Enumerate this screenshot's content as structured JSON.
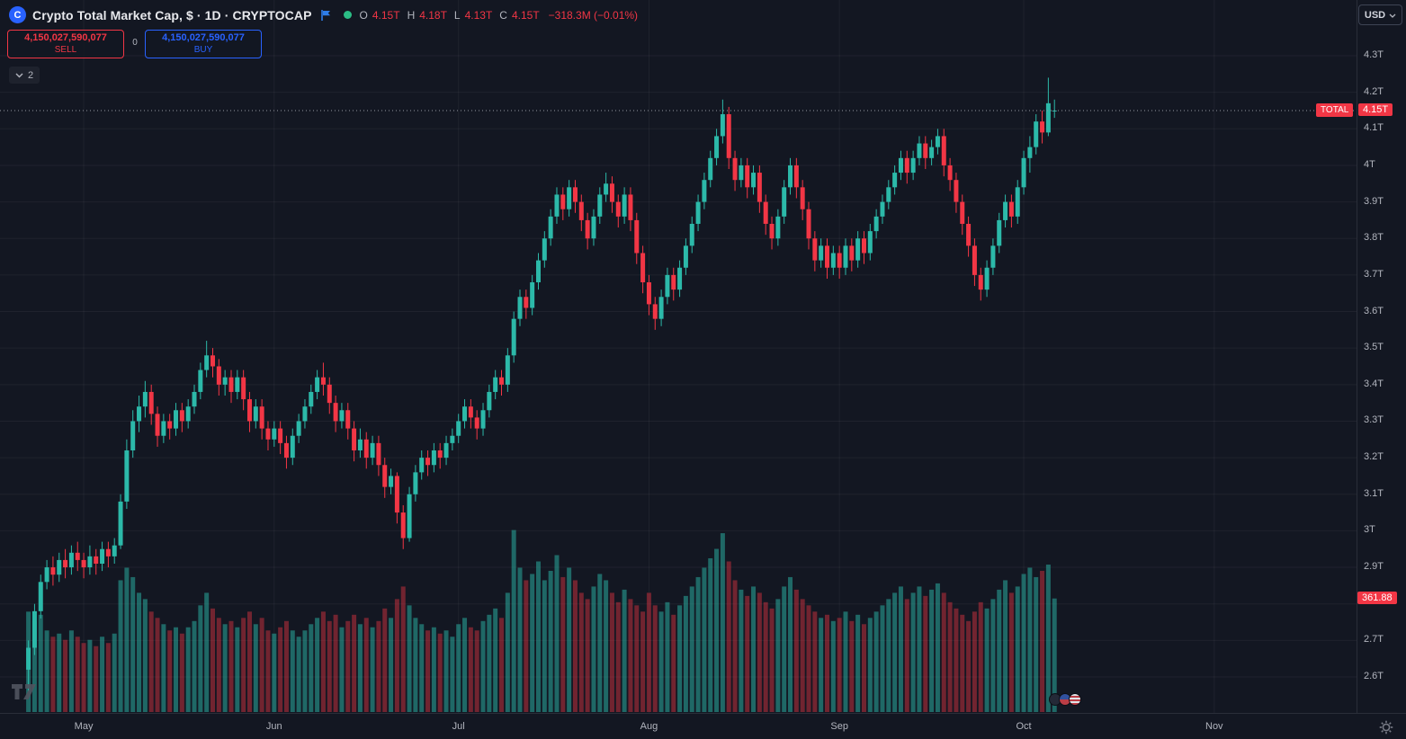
{
  "header": {
    "logo_letter": "C",
    "symbol_title": "Crypto Total Market Cap, $ · 1D · CRYPTOCAP",
    "ohlc": {
      "open_label": "O",
      "open": "4.15T",
      "high_label": "H",
      "high": "4.18T",
      "low_label": "L",
      "low": "4.13T",
      "close_label": "C",
      "close": "4.15T",
      "change": "−318.3M (−0.01%)"
    }
  },
  "trade_panel": {
    "sell_value": "4,150,027,590,077",
    "sell_label": "SELL",
    "spread": "0",
    "buy_value": "4,150,027,590,077",
    "buy_label": "BUY"
  },
  "indicators_chip": {
    "count": "2"
  },
  "currency_dropdown": {
    "value": "USD"
  },
  "price_axis": {
    "tick_labels": [
      "4.3T",
      "4.2T",
      "4.1T",
      "4T",
      "3.9T",
      "3.8T",
      "3.7T",
      "3.6T",
      "3.5T",
      "3.4T",
      "3.3T",
      "3.2T",
      "3.1T",
      "3T",
      "2.9T",
      "2.7T",
      "2.6T"
    ],
    "series_label_badge": "TOTAL",
    "last_price_badge": "4.15T",
    "volume_badge": "361.88"
  },
  "time_axis": {
    "tick_labels": [
      "May",
      "Jun",
      "Jul",
      "Aug",
      "Sep",
      "Oct",
      "Nov"
    ]
  },
  "colors": {
    "background": "#131722",
    "grid": "rgba(255,255,255,0.05)",
    "up": "#2cb9a9",
    "down": "#f23645",
    "volume_up": "rgba(44,185,169,0.50)",
    "volume_down": "rgba(242,54,69,0.42)",
    "price_line": "#9598a1",
    "badge_red": "#f23645",
    "buy_blue": "#2962ff",
    "axis_text": "#b2b5be"
  },
  "chart_data": {
    "type": "candlestick",
    "title": "Crypto Total Market Cap (CRYPTOCAP:TOTAL), 1D, USD",
    "overlay_series": "volume",
    "x_axis": {
      "tick_labels": [
        "May",
        "Jun",
        "Jul",
        "Aug",
        "Sep",
        "Oct",
        "Nov"
      ]
    },
    "y_axis": {
      "unit": "trillion USD",
      "range_T": [
        2.55,
        4.35
      ],
      "visible_ticks_T": [
        4.3,
        4.2,
        4.1,
        4.0,
        3.9,
        3.8,
        3.7,
        3.6,
        3.5,
        3.4,
        3.3,
        3.2,
        3.1,
        3.0,
        2.9,
        2.7,
        2.6
      ]
    },
    "last_price_T": 4.15,
    "last_ohlc": {
      "open": "4.15T",
      "high": "4.18T",
      "low": "4.13T",
      "close": "4.15T",
      "change": "−318.3M",
      "change_pct": "−0.01%"
    },
    "volume_last_B": 361.88,
    "candles_per_month": {
      "Apr_tail": 9,
      "May": 31,
      "Jun": 30,
      "Jul": 31,
      "Aug": 31,
      "Sep": 30,
      "Oct": 6
    },
    "candles_ohlc_T": [
      [
        2.62,
        2.7,
        2.56,
        2.68
      ],
      [
        2.68,
        2.8,
        2.66,
        2.78
      ],
      [
        2.78,
        2.88,
        2.76,
        2.86
      ],
      [
        2.86,
        2.92,
        2.84,
        2.9
      ],
      [
        2.9,
        2.93,
        2.85,
        2.88
      ],
      [
        2.88,
        2.94,
        2.86,
        2.92
      ],
      [
        2.92,
        2.95,
        2.87,
        2.9
      ],
      [
        2.9,
        2.96,
        2.88,
        2.94
      ],
      [
        2.94,
        2.97,
        2.89,
        2.92
      ],
      [
        2.92,
        2.94,
        2.87,
        2.9
      ],
      [
        2.9,
        2.96,
        2.88,
        2.93
      ],
      [
        2.93,
        2.95,
        2.88,
        2.91
      ],
      [
        2.91,
        2.97,
        2.89,
        2.95
      ],
      [
        2.95,
        2.97,
        2.9,
        2.93
      ],
      [
        2.93,
        2.98,
        2.91,
        2.96
      ],
      [
        2.96,
        3.1,
        2.95,
        3.08
      ],
      [
        3.08,
        3.25,
        3.06,
        3.22
      ],
      [
        3.22,
        3.33,
        3.2,
        3.3
      ],
      [
        3.3,
        3.37,
        3.27,
        3.34
      ],
      [
        3.34,
        3.41,
        3.31,
        3.38
      ],
      [
        3.38,
        3.4,
        3.29,
        3.32
      ],
      [
        3.32,
        3.34,
        3.23,
        3.26
      ],
      [
        3.26,
        3.32,
        3.24,
        3.3
      ],
      [
        3.3,
        3.32,
        3.25,
        3.28
      ],
      [
        3.28,
        3.35,
        3.26,
        3.33
      ],
      [
        3.33,
        3.35,
        3.27,
        3.3
      ],
      [
        3.3,
        3.36,
        3.28,
        3.34
      ],
      [
        3.34,
        3.4,
        3.32,
        3.38
      ],
      [
        3.38,
        3.46,
        3.36,
        3.44
      ],
      [
        3.44,
        3.52,
        3.42,
        3.48
      ],
      [
        3.48,
        3.5,
        3.42,
        3.45
      ],
      [
        3.45,
        3.47,
        3.37,
        3.4
      ],
      [
        3.4,
        3.44,
        3.37,
        3.42
      ],
      [
        3.42,
        3.44,
        3.35,
        3.38
      ],
      [
        3.38,
        3.44,
        3.36,
        3.42
      ],
      [
        3.42,
        3.44,
        3.33,
        3.36
      ],
      [
        3.36,
        3.38,
        3.27,
        3.3
      ],
      [
        3.3,
        3.36,
        3.28,
        3.34
      ],
      [
        3.34,
        3.36,
        3.25,
        3.28
      ],
      [
        3.28,
        3.3,
        3.22,
        3.25
      ],
      [
        3.25,
        3.3,
        3.23,
        3.28
      ],
      [
        3.28,
        3.3,
        3.21,
        3.24
      ],
      [
        3.24,
        3.26,
        3.17,
        3.2
      ],
      [
        3.2,
        3.28,
        3.18,
        3.26
      ],
      [
        3.26,
        3.32,
        3.24,
        3.3
      ],
      [
        3.3,
        3.36,
        3.28,
        3.34
      ],
      [
        3.34,
        3.4,
        3.32,
        3.38
      ],
      [
        3.38,
        3.44,
        3.36,
        3.42
      ],
      [
        3.42,
        3.46,
        3.37,
        3.4
      ],
      [
        3.4,
        3.42,
        3.32,
        3.35
      ],
      [
        3.35,
        3.37,
        3.27,
        3.3
      ],
      [
        3.3,
        3.35,
        3.28,
        3.33
      ],
      [
        3.33,
        3.35,
        3.25,
        3.28
      ],
      [
        3.28,
        3.3,
        3.19,
        3.22
      ],
      [
        3.22,
        3.28,
        3.2,
        3.25
      ],
      [
        3.25,
        3.27,
        3.17,
        3.2
      ],
      [
        3.2,
        3.26,
        3.18,
        3.24
      ],
      [
        3.24,
        3.26,
        3.15,
        3.18
      ],
      [
        3.18,
        3.2,
        3.09,
        3.12
      ],
      [
        3.12,
        3.17,
        3.1,
        3.15
      ],
      [
        3.15,
        3.16,
        3.02,
        3.05
      ],
      [
        3.05,
        3.07,
        2.95,
        2.98
      ],
      [
        2.98,
        3.12,
        2.97,
        3.1
      ],
      [
        3.1,
        3.18,
        3.08,
        3.16
      ],
      [
        3.16,
        3.22,
        3.14,
        3.2
      ],
      [
        3.2,
        3.22,
        3.15,
        3.18
      ],
      [
        3.18,
        3.24,
        3.16,
        3.22
      ],
      [
        3.22,
        3.24,
        3.17,
        3.2
      ],
      [
        3.2,
        3.26,
        3.18,
        3.24
      ],
      [
        3.24,
        3.28,
        3.22,
        3.26
      ],
      [
        3.26,
        3.32,
        3.24,
        3.3
      ],
      [
        3.3,
        3.36,
        3.28,
        3.34
      ],
      [
        3.34,
        3.36,
        3.28,
        3.31
      ],
      [
        3.31,
        3.33,
        3.25,
        3.28
      ],
      [
        3.28,
        3.35,
        3.26,
        3.33
      ],
      [
        3.33,
        3.4,
        3.31,
        3.38
      ],
      [
        3.38,
        3.44,
        3.36,
        3.42
      ],
      [
        3.42,
        3.44,
        3.37,
        3.4
      ],
      [
        3.4,
        3.5,
        3.38,
        3.48
      ],
      [
        3.48,
        3.6,
        3.46,
        3.58
      ],
      [
        3.58,
        3.66,
        3.56,
        3.64
      ],
      [
        3.64,
        3.66,
        3.58,
        3.61
      ],
      [
        3.61,
        3.7,
        3.59,
        3.68
      ],
      [
        3.68,
        3.76,
        3.66,
        3.74
      ],
      [
        3.74,
        3.82,
        3.72,
        3.8
      ],
      [
        3.8,
        3.88,
        3.78,
        3.86
      ],
      [
        3.86,
        3.94,
        3.84,
        3.92
      ],
      [
        3.92,
        3.94,
        3.85,
        3.88
      ],
      [
        3.88,
        3.96,
        3.86,
        3.94
      ],
      [
        3.94,
        3.96,
        3.87,
        3.9
      ],
      [
        3.9,
        3.92,
        3.82,
        3.85
      ],
      [
        3.85,
        3.87,
        3.77,
        3.8
      ],
      [
        3.8,
        3.88,
        3.78,
        3.86
      ],
      [
        3.86,
        3.94,
        3.84,
        3.92
      ],
      [
        3.92,
        3.98,
        3.9,
        3.95
      ],
      [
        3.95,
        3.97,
        3.87,
        3.9
      ],
      [
        3.9,
        3.92,
        3.83,
        3.86
      ],
      [
        3.86,
        3.94,
        3.84,
        3.92
      ],
      [
        3.92,
        3.94,
        3.82,
        3.85
      ],
      [
        3.85,
        3.87,
        3.73,
        3.76
      ],
      [
        3.76,
        3.78,
        3.65,
        3.68
      ],
      [
        3.68,
        3.7,
        3.59,
        3.62
      ],
      [
        3.62,
        3.64,
        3.55,
        3.58
      ],
      [
        3.58,
        3.66,
        3.56,
        3.64
      ],
      [
        3.64,
        3.72,
        3.62,
        3.7
      ],
      [
        3.7,
        3.72,
        3.63,
        3.66
      ],
      [
        3.66,
        3.74,
        3.64,
        3.72
      ],
      [
        3.72,
        3.8,
        3.7,
        3.78
      ],
      [
        3.78,
        3.86,
        3.76,
        3.84
      ],
      [
        3.84,
        3.92,
        3.82,
        3.9
      ],
      [
        3.9,
        3.98,
        3.88,
        3.96
      ],
      [
        3.96,
        4.04,
        3.94,
        4.02
      ],
      [
        4.02,
        4.1,
        4.0,
        4.08
      ],
      [
        4.08,
        4.18,
        4.06,
        4.14
      ],
      [
        4.14,
        4.16,
        3.99,
        4.02
      ],
      [
        4.02,
        4.04,
        3.93,
        3.96
      ],
      [
        3.96,
        4.02,
        3.94,
        4.0
      ],
      [
        4.0,
        4.02,
        3.91,
        3.94
      ],
      [
        3.94,
        4.0,
        3.92,
        3.98
      ],
      [
        3.98,
        4.0,
        3.87,
        3.9
      ],
      [
        3.9,
        3.92,
        3.81,
        3.84
      ],
      [
        3.84,
        3.86,
        3.77,
        3.8
      ],
      [
        3.8,
        3.88,
        3.78,
        3.86
      ],
      [
        3.86,
        3.96,
        3.84,
        3.94
      ],
      [
        3.94,
        4.02,
        3.92,
        4.0
      ],
      [
        4.0,
        4.02,
        3.91,
        3.94
      ],
      [
        3.94,
        3.96,
        3.85,
        3.88
      ],
      [
        3.88,
        3.9,
        3.77,
        3.8
      ],
      [
        3.8,
        3.82,
        3.71,
        3.74
      ],
      [
        3.74,
        3.8,
        3.72,
        3.78
      ],
      [
        3.78,
        3.8,
        3.69,
        3.72
      ],
      [
        3.72,
        3.78,
        3.7,
        3.76
      ],
      [
        3.76,
        3.78,
        3.69,
        3.72
      ],
      [
        3.72,
        3.8,
        3.7,
        3.78
      ],
      [
        3.78,
        3.8,
        3.71,
        3.74
      ],
      [
        3.74,
        3.82,
        3.72,
        3.8
      ],
      [
        3.8,
        3.82,
        3.73,
        3.76
      ],
      [
        3.76,
        3.84,
        3.74,
        3.82
      ],
      [
        3.82,
        3.88,
        3.8,
        3.86
      ],
      [
        3.86,
        3.92,
        3.84,
        3.9
      ],
      [
        3.9,
        3.96,
        3.88,
        3.94
      ],
      [
        3.94,
        4.0,
        3.92,
        3.98
      ],
      [
        3.98,
        4.04,
        3.96,
        4.02
      ],
      [
        4.02,
        4.04,
        3.95,
        3.98
      ],
      [
        3.98,
        4.04,
        3.96,
        4.02
      ],
      [
        4.02,
        4.08,
        4.0,
        4.06
      ],
      [
        4.06,
        4.08,
        3.99,
        4.02
      ],
      [
        4.02,
        4.07,
        4.0,
        4.05
      ],
      [
        4.05,
        4.1,
        4.03,
        4.08
      ],
      [
        4.08,
        4.1,
        3.97,
        4.0
      ],
      [
        4.0,
        4.02,
        3.93,
        3.96
      ],
      [
        3.96,
        3.98,
        3.87,
        3.9
      ],
      [
        3.9,
        3.92,
        3.81,
        3.84
      ],
      [
        3.84,
        3.86,
        3.75,
        3.78
      ],
      [
        3.78,
        3.8,
        3.67,
        3.7
      ],
      [
        3.7,
        3.72,
        3.63,
        3.66
      ],
      [
        3.66,
        3.74,
        3.64,
        3.72
      ],
      [
        3.72,
        3.8,
        3.7,
        3.78
      ],
      [
        3.78,
        3.87,
        3.76,
        3.85
      ],
      [
        3.85,
        3.92,
        3.83,
        3.9
      ],
      [
        3.9,
        3.92,
        3.83,
        3.86
      ],
      [
        3.86,
        3.96,
        3.84,
        3.94
      ],
      [
        3.94,
        4.04,
        3.92,
        4.02
      ],
      [
        4.02,
        4.08,
        3.98,
        4.05
      ],
      [
        4.05,
        4.14,
        4.03,
        4.12
      ],
      [
        4.12,
        4.15,
        4.06,
        4.09
      ],
      [
        4.09,
        4.24,
        4.08,
        4.17
      ],
      [
        4.15,
        4.18,
        4.13,
        4.15
      ]
    ],
    "volumes_B": [
      320,
      290,
      310,
      260,
      240,
      250,
      230,
      260,
      240,
      220,
      230,
      210,
      240,
      220,
      250,
      420,
      460,
      430,
      380,
      360,
      320,
      300,
      280,
      260,
      270,
      250,
      270,
      290,
      340,
      380,
      330,
      300,
      280,
      290,
      270,
      300,
      320,
      280,
      300,
      260,
      250,
      270,
      290,
      260,
      240,
      260,
      280,
      300,
      320,
      290,
      310,
      270,
      290,
      310,
      280,
      300,
      270,
      290,
      330,
      300,
      360,
      400,
      340,
      300,
      280,
      260,
      270,
      250,
      260,
      240,
      280,
      300,
      270,
      260,
      290,
      310,
      330,
      300,
      380,
      580,
      460,
      420,
      440,
      480,
      420,
      450,
      500,
      430,
      460,
      420,
      380,
      360,
      400,
      440,
      420,
      380,
      350,
      390,
      360,
      340,
      320,
      380,
      340,
      320,
      350,
      310,
      340,
      370,
      400,
      430,
      460,
      490,
      520,
      570,
      480,
      420,
      390,
      370,
      400,
      380,
      350,
      330,
      360,
      400,
      430,
      390,
      360,
      340,
      320,
      300,
      310,
      290,
      300,
      320,
      290,
      310,
      280,
      300,
      320,
      340,
      360,
      380,
      400,
      360,
      380,
      400,
      370,
      390,
      410,
      380,
      350,
      330,
      310,
      290,
      320,
      350,
      330,
      360,
      390,
      420,
      380,
      400,
      440,
      460,
      430,
      450,
      470,
      361.88
    ]
  }
}
